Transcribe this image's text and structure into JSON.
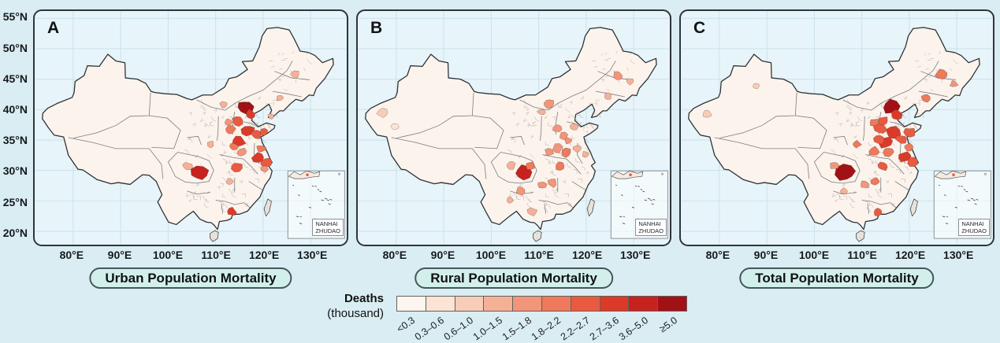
{
  "figure": {
    "background": "#d9edf2",
    "panel_background": "#e7f4f9",
    "grid_color": "#c9e2ec",
    "panel_border_color": "#2e3539",
    "land_fill": "#fcf3ec",
    "pill_background": "#d3efec"
  },
  "panels": [
    {
      "label": "A",
      "title": "Urban Population Mortality"
    },
    {
      "label": "B",
      "title": "Rural Population Mortality"
    },
    {
      "label": "C",
      "title": "Total Population Mortality"
    }
  ],
  "axes": {
    "lat_ticks": [
      "55°N",
      "50°N",
      "45°N",
      "40°N",
      "35°N",
      "30°N",
      "25°N",
      "20°N"
    ],
    "lat_values": [
      55,
      50,
      45,
      40,
      35,
      30,
      25,
      20
    ],
    "lon_ticks": [
      "80°E",
      "90°E",
      "100°E",
      "110°E",
      "120°E",
      "130°E"
    ],
    "lon_values": [
      80,
      90,
      100,
      110,
      120,
      130
    ]
  },
  "inset": {
    "line1": "NANHAI",
    "line2": "ZHUDAO"
  },
  "legend": {
    "title_line1": "Deaths",
    "title_line2": "(thousand)",
    "classes": [
      {
        "label": "<0.3",
        "color": "#fdf5f0"
      },
      {
        "label": "0.3–0.6",
        "color": "#fbe3d6"
      },
      {
        "label": "0.6–1.0",
        "color": "#f8cdb7"
      },
      {
        "label": "1.0–1.5",
        "color": "#f5b197"
      },
      {
        "label": "1.5–1.8",
        "color": "#f2957a"
      },
      {
        "label": "1.8–2.2",
        "color": "#ee795b"
      },
      {
        "label": "2.2–2.7",
        "color": "#e95a41"
      },
      {
        "label": "2.7–3.6",
        "color": "#dc3a28"
      },
      {
        "label": "3.6–5.0",
        "color": "#c6221e"
      },
      {
        "label": "≥5.0",
        "color": "#a21115"
      }
    ]
  },
  "chart_data": {
    "type": "choropleth_map",
    "region": "China, prefecture-level units",
    "unit": "Deaths (thousand)",
    "panels": [
      "Urban Population Mortality",
      "Rural Population Mortality",
      "Total Population Mortality"
    ],
    "class_breaks": [
      "<0.3",
      "0.3–0.6",
      "0.6–1.0",
      "1.0–1.5",
      "1.5–1.8",
      "1.8–2.2",
      "2.2–2.7",
      "2.7–3.6",
      "3.6–5.0",
      "≥5.0"
    ],
    "hotspots_note": "approximate colored clusters as [lon, lat, radius_px, class_index]",
    "hotspots": {
      "A": [
        [
          116.2,
          40.4,
          10,
          9
        ],
        [
          117.3,
          39.2,
          7,
          7
        ],
        [
          114.6,
          38.1,
          7,
          6
        ],
        [
          113.1,
          36.6,
          7,
          5
        ],
        [
          114.8,
          34.8,
          9,
          7
        ],
        [
          116.8,
          36.5,
          9,
          7
        ],
        [
          118.6,
          35.9,
          7,
          6
        ],
        [
          120.2,
          36.3,
          6,
          6
        ],
        [
          113.7,
          34.0,
          6,
          5
        ],
        [
          118.9,
          32.1,
          8,
          7
        ],
        [
          120.6,
          31.3,
          7,
          6
        ],
        [
          119.6,
          33.6,
          6,
          5
        ],
        [
          106.6,
          29.6,
          11,
          8
        ],
        [
          104.1,
          30.7,
          6,
          3
        ],
        [
          114.4,
          30.6,
          7,
          6
        ],
        [
          113.0,
          28.2,
          5,
          3
        ],
        [
          113.4,
          23.2,
          6,
          7
        ],
        [
          126.7,
          45.8,
          6,
          3
        ],
        [
          123.5,
          41.9,
          5,
          3
        ],
        [
          108.9,
          34.3,
          5,
          3
        ],
        [
          112.6,
          37.9,
          5,
          4
        ],
        [
          121.6,
          38.9,
          4,
          3
        ],
        [
          115.6,
          33.0,
          6,
          4
        ],
        [
          111.7,
          40.8,
          5,
          3
        ],
        [
          120.2,
          30.3,
          5,
          4
        ]
      ],
      "B": [
        [
          106.6,
          29.6,
          11,
          8
        ],
        [
          108.2,
          30.8,
          6,
          5
        ],
        [
          112.2,
          33.1,
          6,
          4
        ],
        [
          113.9,
          33.6,
          7,
          4
        ],
        [
          115.2,
          35.6,
          6,
          4
        ],
        [
          113.9,
          36.9,
          6,
          4
        ],
        [
          112.1,
          41.0,
          7,
          4
        ],
        [
          110.6,
          39.6,
          5,
          3
        ],
        [
          115.7,
          32.9,
          7,
          5
        ],
        [
          114.4,
          30.7,
          6,
          5
        ],
        [
          110.6,
          27.6,
          6,
          4
        ],
        [
          112.9,
          27.9,
          6,
          4
        ],
        [
          108.6,
          23.2,
          6,
          3
        ],
        [
          106.1,
          26.6,
          6,
          4
        ],
        [
          103.9,
          25.1,
          5,
          3
        ],
        [
          126.6,
          45.6,
          6,
          4
        ],
        [
          124.6,
          42.2,
          5,
          3
        ],
        [
          129.2,
          44.6,
          5,
          3
        ],
        [
          77.2,
          39.4,
          7,
          2
        ],
        [
          79.8,
          37.3,
          5,
          1
        ],
        [
          118.1,
          33.6,
          5,
          3
        ],
        [
          116.2,
          34.9,
          5,
          4
        ],
        [
          104.2,
          30.9,
          6,
          3
        ],
        [
          117.5,
          37.2,
          5,
          3
        ],
        [
          119.9,
          32.6,
          5,
          3
        ]
      ],
      "C": [
        [
          116.2,
          40.4,
          11,
          9
        ],
        [
          106.6,
          29.6,
          12,
          9
        ],
        [
          114.9,
          34.6,
          9,
          7
        ],
        [
          116.6,
          36.3,
          9,
          7
        ],
        [
          113.9,
          36.9,
          8,
          6
        ],
        [
          113.6,
          35.1,
          8,
          6
        ],
        [
          112.6,
          33.1,
          7,
          5
        ],
        [
          118.4,
          35.1,
          7,
          6
        ],
        [
          120.1,
          36.3,
          7,
          6
        ],
        [
          117.3,
          39.1,
          7,
          7
        ],
        [
          114.6,
          38.1,
          7,
          6
        ],
        [
          118.9,
          32.2,
          8,
          7
        ],
        [
          120.6,
          31.4,
          7,
          6
        ],
        [
          119.8,
          33.8,
          6,
          5
        ],
        [
          114.4,
          30.7,
          7,
          6
        ],
        [
          112.9,
          28.2,
          6,
          5
        ],
        [
          108.9,
          34.3,
          6,
          5
        ],
        [
          112.6,
          37.9,
          6,
          5
        ],
        [
          104.1,
          30.8,
          6,
          4
        ],
        [
          113.4,
          23.2,
          6,
          6
        ],
        [
          126.7,
          45.8,
          7,
          5
        ],
        [
          123.5,
          41.9,
          6,
          5
        ],
        [
          129.4,
          44.2,
          5,
          4
        ],
        [
          77.4,
          39.2,
          6,
          2
        ],
        [
          87.7,
          43.9,
          4,
          2
        ],
        [
          110.7,
          27.7,
          6,
          4
        ],
        [
          106.2,
          26.6,
          5,
          3
        ],
        [
          115.7,
          33.0,
          7,
          5
        ]
      ]
    }
  }
}
